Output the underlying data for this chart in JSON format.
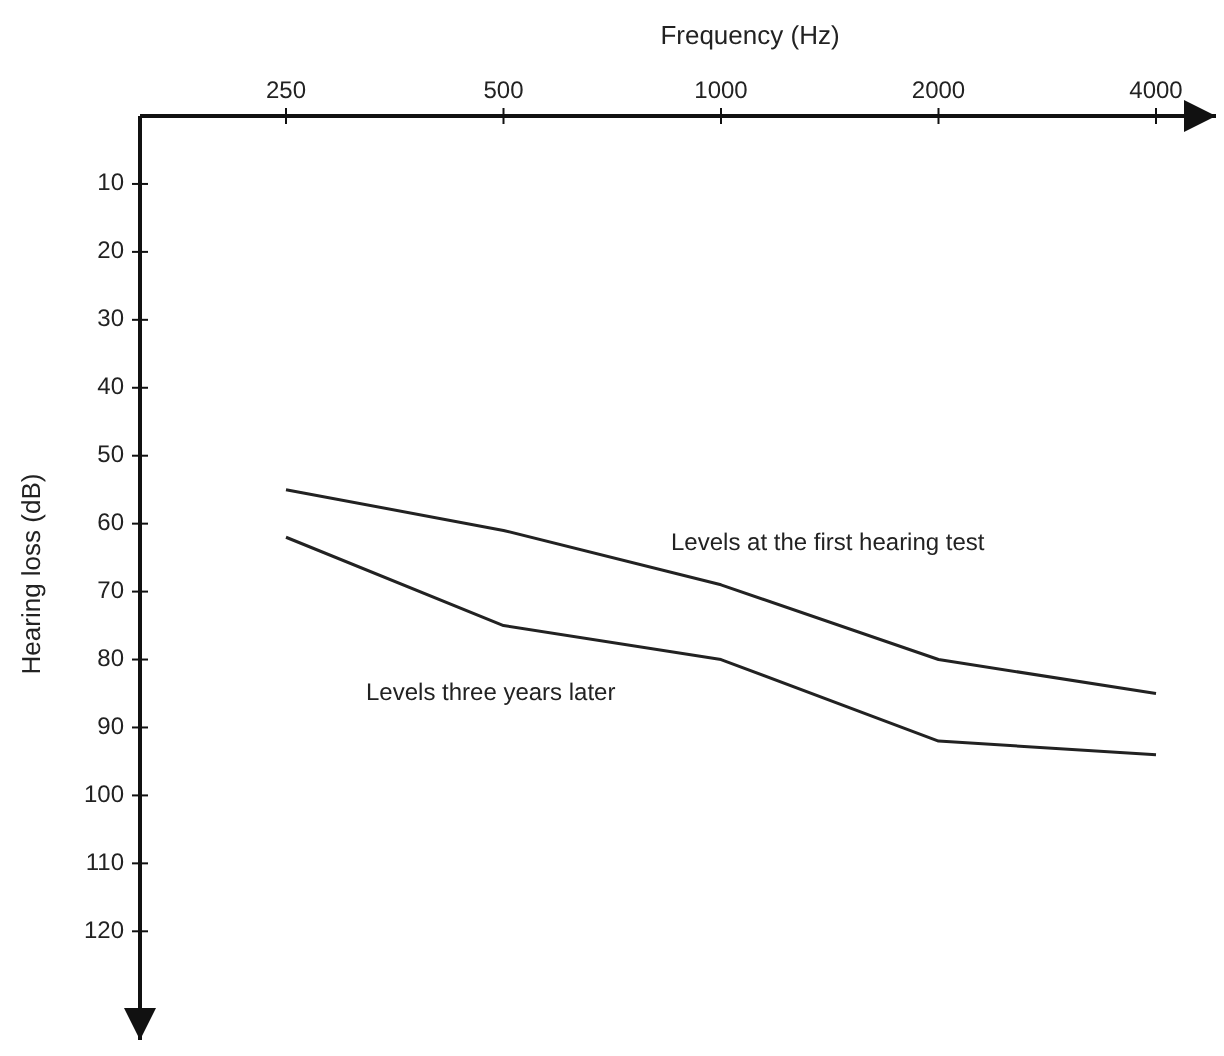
{
  "chart_data": {
    "type": "line",
    "xlabel": "Frequency (Hz)",
    "ylabel": "Hearing loss (dB)",
    "categories": [
      "250",
      "500",
      "1000",
      "2000",
      "4000"
    ],
    "series": [
      {
        "name": "Levels at the first hearing test",
        "color": "#222222",
        "values": [
          55,
          61,
          69,
          80,
          85
        ]
      },
      {
        "name": "Levels three years later",
        "color": "#222222",
        "values": [
          62,
          75,
          80,
          92,
          94
        ]
      }
    ],
    "ylim": [
      136,
      0
    ],
    "yticks": [
      10,
      20,
      30,
      40,
      50,
      60,
      70,
      80,
      90,
      100,
      110,
      120
    ],
    "grid": false,
    "marker": "none",
    "line_style": "solid"
  }
}
